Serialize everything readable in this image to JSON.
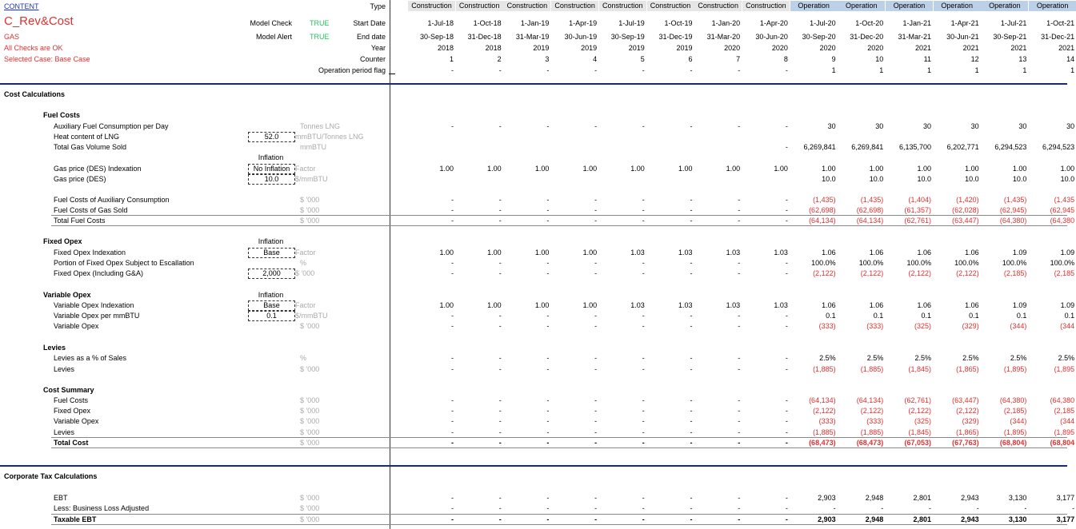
{
  "header": {
    "content_link": "CONTENT",
    "title": "C_Rev&Cost",
    "sheet_tag": "GAS",
    "checks_status": "All Checks are OK",
    "selected_case": "Selected Case: Base Case",
    "model_check_label": "Model Check",
    "model_check_value": "TRUE",
    "model_alert_label": "Model Alert",
    "model_alert_value": "TRUE",
    "row_labels": {
      "type": "Type",
      "start_date": "Start Date",
      "end_date": "End date",
      "year": "Year",
      "counter": "Counter",
      "op_flag": "Operation period flag"
    }
  },
  "periods": [
    {
      "type": "Construction",
      "start": "1-Jul-18",
      "end": "30-Sep-18",
      "year": "2018",
      "counter": "1",
      "flag": "-"
    },
    {
      "type": "Construction",
      "start": "1-Oct-18",
      "end": "31-Dec-18",
      "year": "2018",
      "counter": "2",
      "flag": "-"
    },
    {
      "type": "Construction",
      "start": "1-Jan-19",
      "end": "31-Mar-19",
      "year": "2019",
      "counter": "3",
      "flag": "-"
    },
    {
      "type": "Construction",
      "start": "1-Apr-19",
      "end": "30-Jun-19",
      "year": "2019",
      "counter": "4",
      "flag": "-"
    },
    {
      "type": "Construction",
      "start": "1-Jul-19",
      "end": "30-Sep-19",
      "year": "2019",
      "counter": "5",
      "flag": "-"
    },
    {
      "type": "Construction",
      "start": "1-Oct-19",
      "end": "31-Dec-19",
      "year": "2019",
      "counter": "6",
      "flag": "-"
    },
    {
      "type": "Construction",
      "start": "1-Jan-20",
      "end": "31-Mar-20",
      "year": "2020",
      "counter": "7",
      "flag": "-"
    },
    {
      "type": "Construction",
      "start": "1-Apr-20",
      "end": "30-Jun-20",
      "year": "2020",
      "counter": "8",
      "flag": "-"
    },
    {
      "type": "Operation",
      "start": "1-Jul-20",
      "end": "30-Sep-20",
      "year": "2020",
      "counter": "9",
      "flag": "1"
    },
    {
      "type": "Operation",
      "start": "1-Oct-20",
      "end": "31-Dec-20",
      "year": "2020",
      "counter": "10",
      "flag": "1"
    },
    {
      "type": "Operation",
      "start": "1-Jan-21",
      "end": "31-Mar-21",
      "year": "2021",
      "counter": "11",
      "flag": "1"
    },
    {
      "type": "Operation",
      "start": "1-Apr-21",
      "end": "30-Jun-21",
      "year": "2021",
      "counter": "12",
      "flag": "1"
    },
    {
      "type": "Operation",
      "start": "1-Jul-21",
      "end": "30-Sep-21",
      "year": "2021",
      "counter": "13",
      "flag": "1"
    },
    {
      "type": "Operation",
      "start": "1-Oct-21",
      "end": "31-Dec-21",
      "year": "2021",
      "counter": "14",
      "flag": "1"
    }
  ],
  "sections": [
    {
      "title": "Cost Calculations",
      "kind": "section"
    },
    {
      "title": "Fuel Costs",
      "kind": "group"
    },
    {
      "label": "Auxiliary Fuel Consumption per Day",
      "unit": "Tonnes LNG",
      "values": [
        "-",
        "-",
        "-",
        "-",
        "-",
        "-",
        "-",
        "-",
        "30",
        "30",
        "30",
        "30",
        "30",
        "30"
      ]
    },
    {
      "label": "Heat content of LNG",
      "input": "52.0",
      "unit": "mmBTU/Tonnes LNG"
    },
    {
      "label": "Total Gas Volume Sold",
      "unit": "mmBTU",
      "values": [
        "",
        "",
        "",
        "",
        "",
        "",
        "",
        "-",
        "6,269,841",
        "6,269,841",
        "6,135,700",
        "6,202,771",
        "6,294,523",
        "6,294,523"
      ]
    },
    {
      "label": "",
      "above_input": "Inflation"
    },
    {
      "label": "Gas price (DES) Indexation",
      "input": "No Inflation",
      "unit": "Factor",
      "values": [
        "1.00",
        "1.00",
        "1.00",
        "1.00",
        "1.00",
        "1.00",
        "1.00",
        "1.00",
        "1.00",
        "1.00",
        "1.00",
        "1.00",
        "1.00",
        "1.00"
      ]
    },
    {
      "label": "Gas price (DES)",
      "input": "10.0",
      "unit": "$/mmBTU",
      "values": [
        "",
        "",
        "",
        "",
        "",
        "",
        "",
        "",
        "10.0",
        "10.0",
        "10.0",
        "10.0",
        "10.0",
        "10.0"
      ]
    },
    {
      "label": ""
    },
    {
      "label": "Fuel Costs of Auxiliary Consumption",
      "unit": "$ '000",
      "values": [
        "-",
        "-",
        "-",
        "-",
        "-",
        "-",
        "-",
        "-",
        "(1,435)",
        "(1,435)",
        "(1,404)",
        "(1,420)",
        "(1,435)",
        "(1,435"
      ],
      "neg": true
    },
    {
      "label": "Fuel Costs of Gas Sold",
      "unit": "$ '000",
      "values": [
        "-",
        "-",
        "-",
        "-",
        "-",
        "-",
        "-",
        "-",
        "(62,698)",
        "(62,698)",
        "(61,357)",
        "(62,028)",
        "(62,945)",
        "(62,945"
      ],
      "neg": true
    },
    {
      "label": "Total Fuel Costs",
      "unit": "$ '000",
      "values": [
        "-",
        "-",
        "-",
        "-",
        "-",
        "-",
        "-",
        "-",
        "(64,134)",
        "(64,134)",
        "(62,761)",
        "(63,447)",
        "(64,380)",
        "(64,380"
      ],
      "neg": true,
      "total": true
    },
    {
      "label": ""
    },
    {
      "title": "Fixed Opex",
      "kind": "group",
      "above_input": "Inflation"
    },
    {
      "label": "Fixed Opex Indexation",
      "input": "Base",
      "unit": "Factor",
      "values": [
        "1.00",
        "1.00",
        "1.00",
        "1.00",
        "1.03",
        "1.03",
        "1.03",
        "1.03",
        "1.06",
        "1.06",
        "1.06",
        "1.06",
        "1.09",
        "1.09"
      ]
    },
    {
      "label": "Portion of Fixed Opex Subject to Escallation",
      "unit": "%",
      "values": [
        "-",
        "-",
        "-",
        "-",
        "-",
        "-",
        "-",
        "-",
        "100.0%",
        "100.0%",
        "100.0%",
        "100.0%",
        "100.0%",
        "100.0%"
      ]
    },
    {
      "label": "Fixed Opex (Including G&A)",
      "input": "2,000",
      "unit": "$ '000",
      "values": [
        "-",
        "-",
        "-",
        "-",
        "-",
        "-",
        "-",
        "-",
        "(2,122)",
        "(2,122)",
        "(2,122)",
        "(2,122)",
        "(2,185)",
        "(2,185"
      ],
      "neg": true
    },
    {
      "label": ""
    },
    {
      "title": "Variable Opex",
      "kind": "group",
      "above_input": "Inflation"
    },
    {
      "label": "Variable Opex Indexation",
      "input": "Base",
      "unit": "Factor",
      "values": [
        "1.00",
        "1.00",
        "1.00",
        "1.00",
        "1.03",
        "1.03",
        "1.03",
        "1.03",
        "1.06",
        "1.06",
        "1.06",
        "1.06",
        "1.09",
        "1.09"
      ]
    },
    {
      "label": "Variable Opex per mmBTU",
      "input": "0.1",
      "unit": "$/mmBTU",
      "values": [
        "-",
        "-",
        "-",
        "-",
        "-",
        "-",
        "-",
        "-",
        "0.1",
        "0.1",
        "0.1",
        "0.1",
        "0.1",
        "0.1"
      ]
    },
    {
      "label": "Variable Opex",
      "unit": "$ '000",
      "values": [
        "-",
        "-",
        "-",
        "-",
        "-",
        "-",
        "-",
        "-",
        "(333)",
        "(333)",
        "(325)",
        "(329)",
        "(344)",
        "(344"
      ],
      "neg": true
    },
    {
      "label": ""
    },
    {
      "title": "Levies",
      "kind": "group"
    },
    {
      "label": "Levies as a % of Sales",
      "unit": "%",
      "values": [
        "-",
        "-",
        "-",
        "-",
        "-",
        "-",
        "-",
        "-",
        "2.5%",
        "2.5%",
        "2.5%",
        "2.5%",
        "2.5%",
        "2.5%"
      ]
    },
    {
      "label": "Levies",
      "unit": "$ '000",
      "values": [
        "-",
        "-",
        "-",
        "-",
        "-",
        "-",
        "-",
        "-",
        "(1,885)",
        "(1,885)",
        "(1,845)",
        "(1,865)",
        "(1,895)",
        "(1,895"
      ],
      "neg": true
    },
    {
      "label": ""
    },
    {
      "title": "Cost Summary",
      "kind": "group"
    },
    {
      "label": "Fuel Costs",
      "unit": "$ '000",
      "values": [
        "-",
        "-",
        "-",
        "-",
        "-",
        "-",
        "-",
        "-",
        "(64,134)",
        "(64,134)",
        "(62,761)",
        "(63,447)",
        "(64,380)",
        "(64,380"
      ],
      "neg": true
    },
    {
      "label": "Fixed Opex",
      "unit": "$ '000",
      "values": [
        "-",
        "-",
        "-",
        "-",
        "-",
        "-",
        "-",
        "-",
        "(2,122)",
        "(2,122)",
        "(2,122)",
        "(2,122)",
        "(2,185)",
        "(2,185"
      ],
      "neg": true
    },
    {
      "label": "Variable Opex",
      "unit": "$ '000",
      "values": [
        "-",
        "-",
        "-",
        "-",
        "-",
        "-",
        "-",
        "-",
        "(333)",
        "(333)",
        "(325)",
        "(329)",
        "(344)",
        "(344"
      ],
      "neg": true
    },
    {
      "label": "Levies",
      "unit": "$ '000",
      "values": [
        "-",
        "-",
        "-",
        "-",
        "-",
        "-",
        "-",
        "-",
        "(1,885)",
        "(1,885)",
        "(1,845)",
        "(1,865)",
        "(1,895)",
        "(1,895"
      ],
      "neg": true
    },
    {
      "label": "Total Cost",
      "unit": "$ '000",
      "values": [
        "-",
        "-",
        "-",
        "-",
        "-",
        "-",
        "-",
        "-",
        "(68,473)",
        "(68,473)",
        "(67,053)",
        "(67,763)",
        "(68,804)",
        "(68,804"
      ],
      "neg": true,
      "total": true,
      "bold": true
    },
    {
      "label": ""
    },
    {
      "label": ""
    },
    {
      "title": "Corporate Tax Calculations",
      "kind": "section"
    },
    {
      "label": ""
    },
    {
      "label": "EBT",
      "unit": "$ '000",
      "values": [
        "-",
        "-",
        "-",
        "-",
        "-",
        "-",
        "-",
        "-",
        "2,903",
        "2,948",
        "2,801",
        "2,943",
        "3,130",
        "3,177"
      ]
    },
    {
      "label": "Less: Business Loss Adjusted",
      "unit": "$ '000",
      "values": [
        "-",
        "-",
        "-",
        "-",
        "-",
        "-",
        "-",
        "-",
        "-",
        "-",
        "-",
        "-",
        "-",
        "-"
      ]
    },
    {
      "label": "Taxable EBT",
      "unit": "$ '000",
      "values": [
        "-",
        "-",
        "-",
        "-",
        "-",
        "-",
        "-",
        "-",
        "2,903",
        "2,948",
        "2,801",
        "2,943",
        "3,130",
        "3,177"
      ],
      "total": true,
      "bold": true
    }
  ],
  "colors": {
    "red": "#e03030",
    "green": "#22c55e",
    "construction_bg": "#e6e6e6",
    "operation_bg": "#bcd0e8",
    "section_rule": "#1a2a6c"
  }
}
